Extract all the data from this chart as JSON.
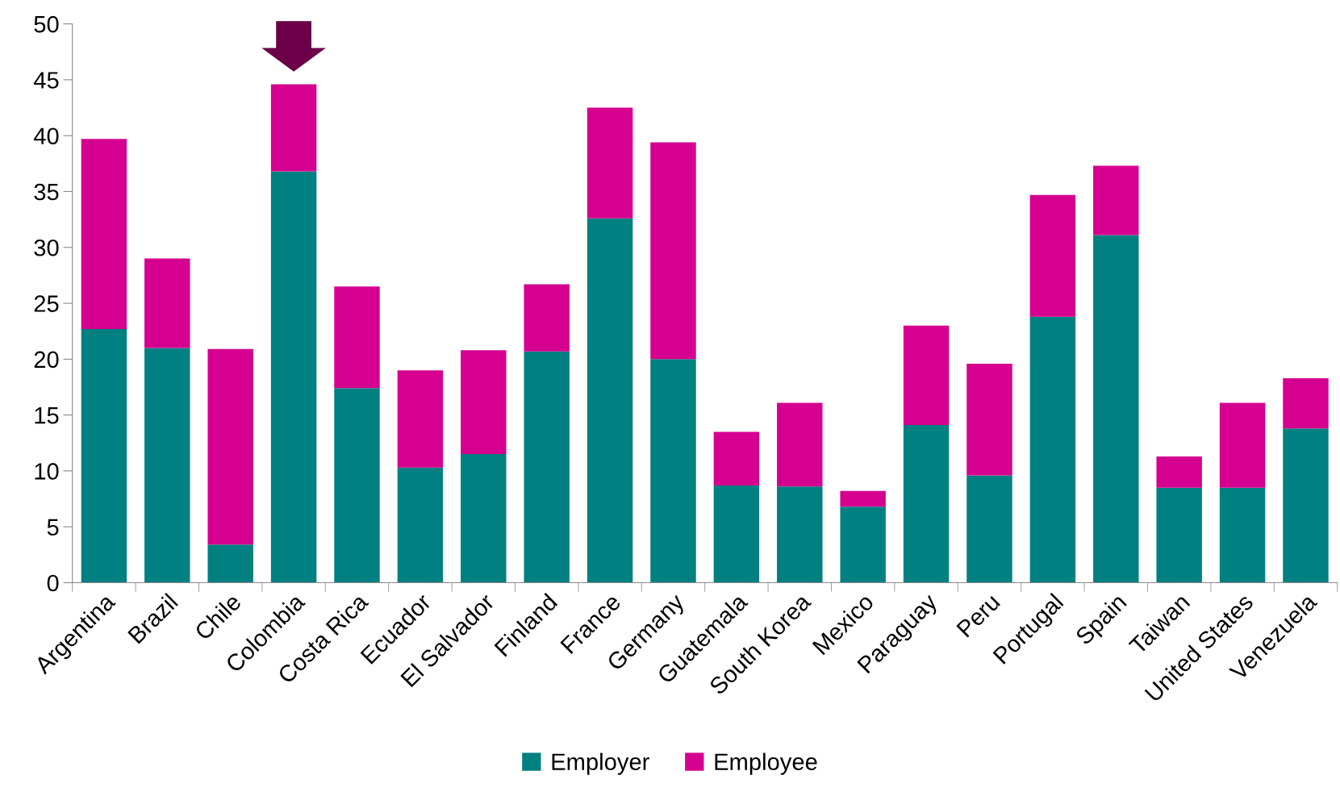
{
  "chart_data": {
    "type": "bar",
    "stacked": true,
    "categories": [
      "Argentina",
      "Brazil",
      "Chile",
      "Colombia",
      "Costa Rica",
      "Ecuador",
      "El Salvador",
      "Finland",
      "France",
      "Germany",
      "Guatemala",
      "South Korea",
      "Mexico",
      "Paraguay",
      "Peru",
      "Portugal",
      "Spain",
      "Taiwan",
      "United States",
      "Venezuela"
    ],
    "series": [
      {
        "name": "Employer",
        "color": "#008080",
        "values": [
          22.7,
          21.0,
          3.4,
          36.8,
          17.4,
          10.3,
          11.5,
          20.7,
          32.6,
          20.0,
          8.7,
          8.6,
          6.8,
          14.1,
          9.6,
          23.8,
          31.1,
          8.5,
          8.5,
          13.8
        ]
      },
      {
        "name": "Employee",
        "color": "#d5008f",
        "values": [
          17.0,
          8.0,
          17.5,
          7.8,
          9.1,
          8.7,
          9.3,
          6.0,
          9.9,
          19.4,
          4.8,
          7.5,
          1.4,
          8.9,
          10.0,
          10.9,
          6.2,
          2.8,
          7.6,
          4.5
        ]
      }
    ],
    "ylim": [
      0,
      50
    ],
    "yticks": [
      0,
      5,
      10,
      15,
      20,
      25,
      30,
      35,
      40,
      45,
      50
    ],
    "grid": false,
    "legend": "bottom"
  }
}
